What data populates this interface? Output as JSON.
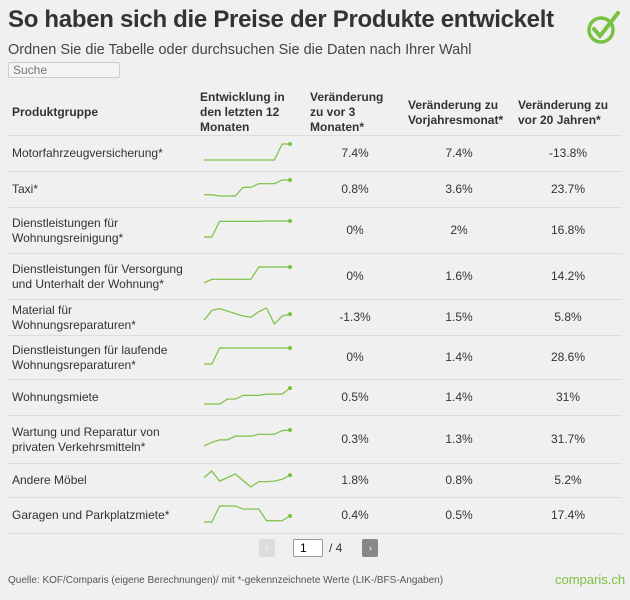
{
  "title": "So haben sich die Preise der Produkte entwickelt",
  "subtitle": "Ordnen Sie die Tabelle oder durchsuchen Sie die Daten nach Ihrer Wahl",
  "search": {
    "placeholder": "Suche"
  },
  "accent": "#7ac142",
  "columns": [
    "Produktgruppe",
    "Entwicklung in den letzten 12 Monaten",
    "Veränderung zu vor 3 Monaten*",
    "Veränderung zu Vorjahresmonat*",
    "Veränderung zu vor 20 Jahren*"
  ],
  "rows": [
    {
      "name": "Motorfahrzeugversicherung*",
      "m3": "7.4%",
      "yoy": "7.4%",
      "y20": "-13.8%",
      "spark": [
        0,
        0,
        0,
        0,
        0,
        0,
        0,
        0,
        0,
        0,
        13,
        13
      ]
    },
    {
      "name": "Taxi*",
      "m3": "0.8%",
      "yoy": "3.6%",
      "y20": "23.7%",
      "spark": [
        0,
        0,
        -1,
        -1,
        -1,
        6,
        6,
        9,
        9,
        9,
        12,
        12
      ]
    },
    {
      "name": "Dienstleistungen für Wohnungsreinigung*",
      "m3": "0%",
      "yoy": "2%",
      "y20": "16.8%",
      "spark": [
        0,
        0,
        13,
        13,
        13,
        13,
        13,
        13,
        13.3,
        13.3,
        13.3,
        13.3
      ]
    },
    {
      "name": "Dienstleistungen für Versorgung und Unterhalt der Wohnung*",
      "m3": "0%",
      "yoy": "1.6%",
      "y20": "14.2%",
      "spark": [
        0,
        3,
        3,
        3,
        3,
        3,
        3,
        13,
        13,
        13,
        13,
        13
      ]
    },
    {
      "name": "Material für Wohnungsreparaturen*",
      "m3": "-1.3%",
      "yoy": "1.5%",
      "y20": "5.8%",
      "spark": [
        0,
        8,
        9.5,
        7.5,
        5.5,
        3.5,
        2.5,
        7,
        10,
        -3,
        3.5,
        5
      ]
    },
    {
      "name": "Dienstleistungen für laufende Wohnungsreparaturen*",
      "m3": "0%",
      "yoy": "1.4%",
      "y20": "28.6%",
      "spark": [
        0,
        0,
        13,
        13,
        13,
        13,
        13,
        13,
        13,
        13,
        13,
        13
      ]
    },
    {
      "name": "Wohnungsmiete",
      "m3": "0.5%",
      "yoy": "1.4%",
      "y20": "31%",
      "spark": [
        0,
        0,
        0,
        4,
        4,
        7,
        7,
        7,
        8,
        8,
        8,
        13
      ]
    },
    {
      "name": "Wartung und Reparatur von privaten Verkehrsmitteln*",
      "m3": "0.3%",
      "yoy": "1.3%",
      "y20": "31.7%",
      "spark": [
        0,
        3,
        5,
        5,
        8,
        8,
        8,
        9.5,
        9.5,
        9.5,
        12.5,
        13
      ]
    },
    {
      "name": "Andere Möbel",
      "m3": "1.8%",
      "yoy": "0.8%",
      "y20": "5.2%",
      "spark": [
        8,
        13.5,
        5,
        8,
        11,
        5.5,
        0,
        4.5,
        4.5,
        5,
        6.5,
        10
      ]
    },
    {
      "name": "Garagen und Parkplatzmiete*",
      "m3": "0.4%",
      "yoy": "0.5%",
      "y20": "17.4%",
      "spark": [
        0,
        0,
        13,
        13,
        13,
        10.5,
        10.5,
        10.5,
        1,
        1,
        1,
        5
      ]
    }
  ],
  "pager": {
    "prev": "‹",
    "page": "1",
    "total": "/ 4",
    "next": "›"
  },
  "source": "Quelle: KOF/Comparis (eigene Berechnungen)/ mit *-gekennzeichnete Werte (LIK-/BFS-Angaben)",
  "brand": "comparis.ch"
}
